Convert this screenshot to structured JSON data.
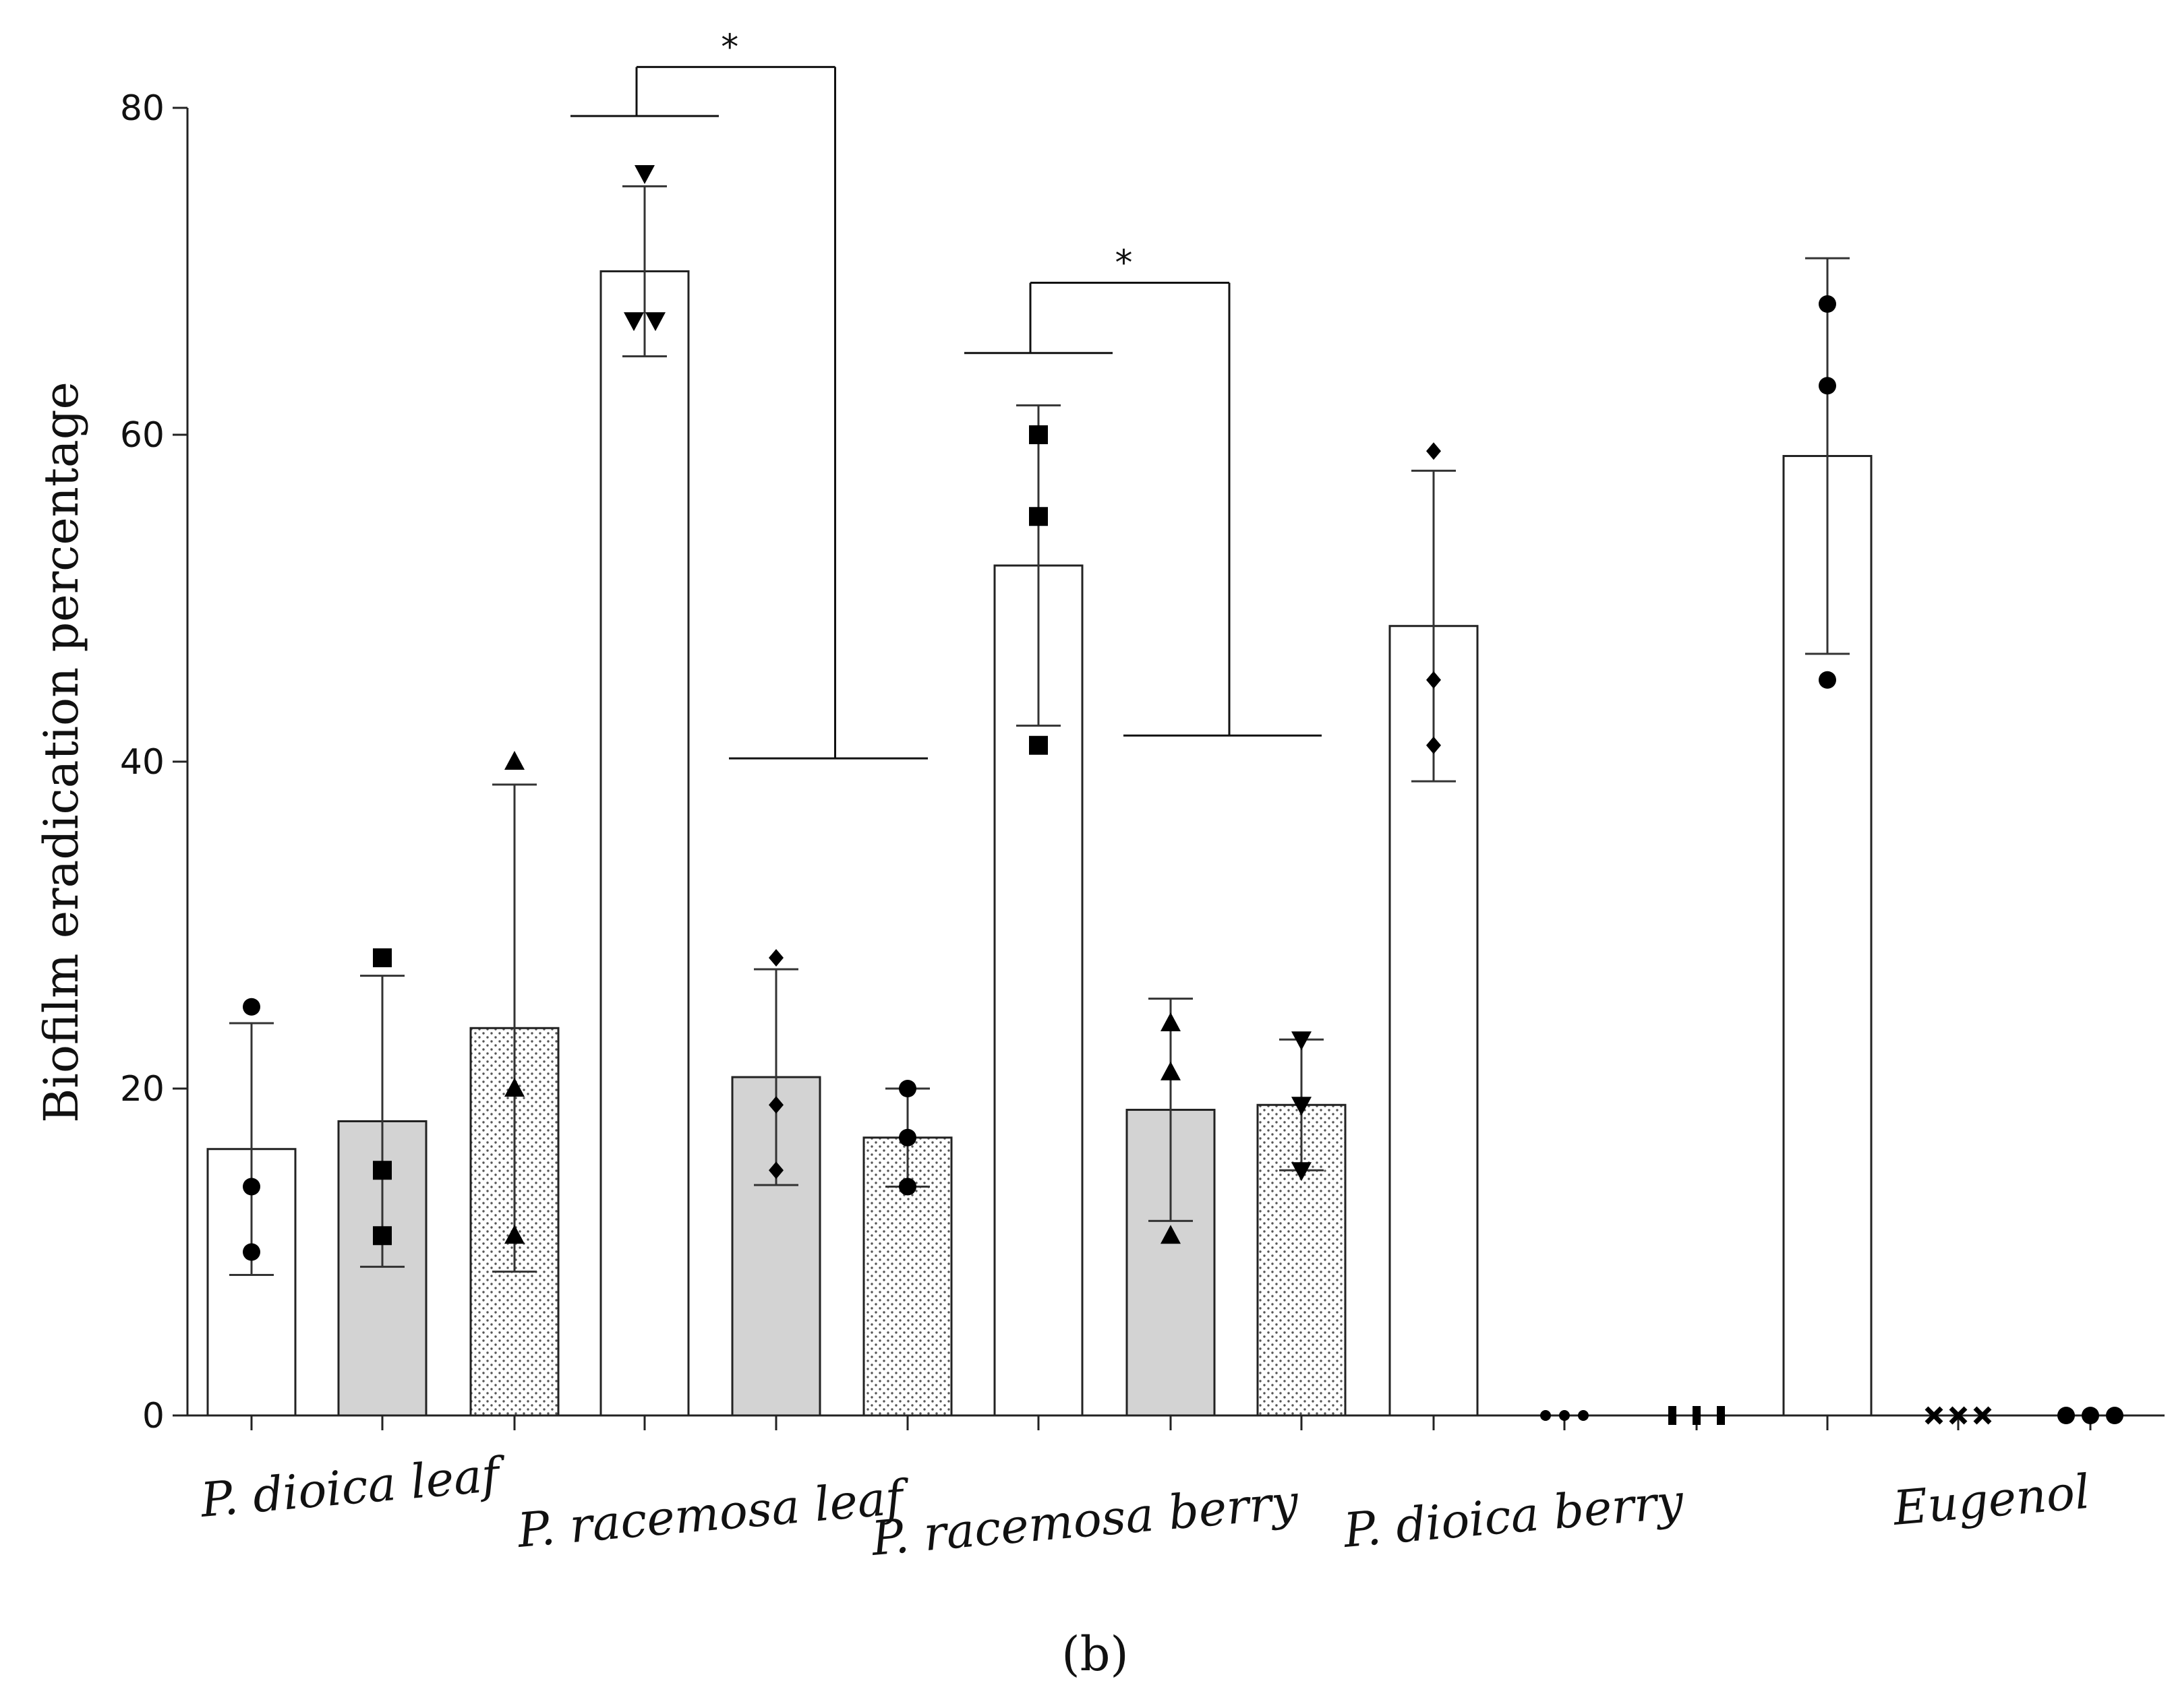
{
  "chart_data": {
    "type": "bar",
    "ylabel": "Biofilm eradication percentage",
    "xlabel": "",
    "ylim": [
      0,
      80
    ],
    "yticks": [
      "0",
      "20",
      "40",
      "60",
      "80"
    ],
    "groups": [
      {
        "label": "P. dioica leaf",
        "bars": [
          0,
          1,
          2
        ]
      },
      {
        "label": "P. racemosa leaf",
        "bars": [
          3,
          4,
          5
        ]
      },
      {
        "label": "P. racemosa berry",
        "bars": [
          6,
          7,
          8
        ]
      },
      {
        "label": "P. dioica berry",
        "bars": [
          9,
          10,
          11
        ]
      },
      {
        "label": "Eugenol",
        "bars": [
          12,
          13,
          14
        ]
      }
    ],
    "bars": [
      {
        "value": 16.3,
        "sd": 7.7,
        "fill": "white",
        "marker": "circle",
        "points": [
          25,
          14,
          10
        ]
      },
      {
        "value": 18.0,
        "sd": 8.9,
        "fill": "gray",
        "marker": "square",
        "points": [
          28,
          15,
          11
        ]
      },
      {
        "value": 23.7,
        "sd": 14.9,
        "fill": "dotted",
        "marker": "triangle-up",
        "points": [
          40,
          20,
          11
        ]
      },
      {
        "value": 70.0,
        "sd": 5.2,
        "fill": "white",
        "marker": "triangle-down",
        "points": [
          76,
          67,
          67
        ]
      },
      {
        "value": 20.7,
        "sd": 6.6,
        "fill": "gray",
        "marker": "diamond",
        "points": [
          28,
          19,
          15
        ]
      },
      {
        "value": 17.0,
        "sd": 3.0,
        "fill": "dotted",
        "marker": "circle",
        "points": [
          20,
          17,
          14
        ]
      },
      {
        "value": 52.0,
        "sd": 9.8,
        "fill": "white",
        "marker": "square",
        "points": [
          60,
          55,
          41
        ]
      },
      {
        "value": 18.7,
        "sd": 6.8,
        "fill": "gray",
        "marker": "triangle-up",
        "points": [
          24,
          21,
          11
        ]
      },
      {
        "value": 19.0,
        "sd": 4.0,
        "fill": "dotted",
        "marker": "triangle-down",
        "points": [
          23,
          19,
          15
        ]
      },
      {
        "value": 48.3,
        "sd": 9.5,
        "fill": "white",
        "marker": "diamond",
        "points": [
          59,
          45,
          41
        ]
      },
      {
        "value": 0,
        "sd": 0,
        "fill": "gray",
        "marker": "circle",
        "points": [
          0,
          0,
          0
        ]
      },
      {
        "value": 0,
        "sd": 0,
        "fill": "dotted",
        "marker": "bar",
        "points": [
          0,
          0,
          0
        ]
      },
      {
        "value": 58.7,
        "sd": 12.1,
        "fill": "white",
        "marker": "circle",
        "points": [
          68,
          63,
          45
        ]
      },
      {
        "value": 0,
        "sd": 0,
        "fill": "gray",
        "marker": "cross",
        "points": [
          0,
          0,
          0
        ]
      },
      {
        "value": 0,
        "sd": 0,
        "fill": "dotted",
        "marker": "circle",
        "points": [
          0,
          0,
          0
        ]
      }
    ],
    "significance": [
      {
        "label": "*",
        "from_bar": 3,
        "to_bars": [
          4,
          5
        ],
        "left_y": 79.5,
        "top_y": 82.5,
        "right_y": 40.2
      },
      {
        "label": "*",
        "from_bar": 6,
        "to_bars": [
          7,
          8
        ],
        "left_y": 65,
        "top_y": 69.3,
        "right_y": 41.6
      }
    ],
    "colors": {
      "gray": "#d3d3d3",
      "white": "#ffffff",
      "edge": "#222222"
    },
    "panel_label": "(b)"
  }
}
